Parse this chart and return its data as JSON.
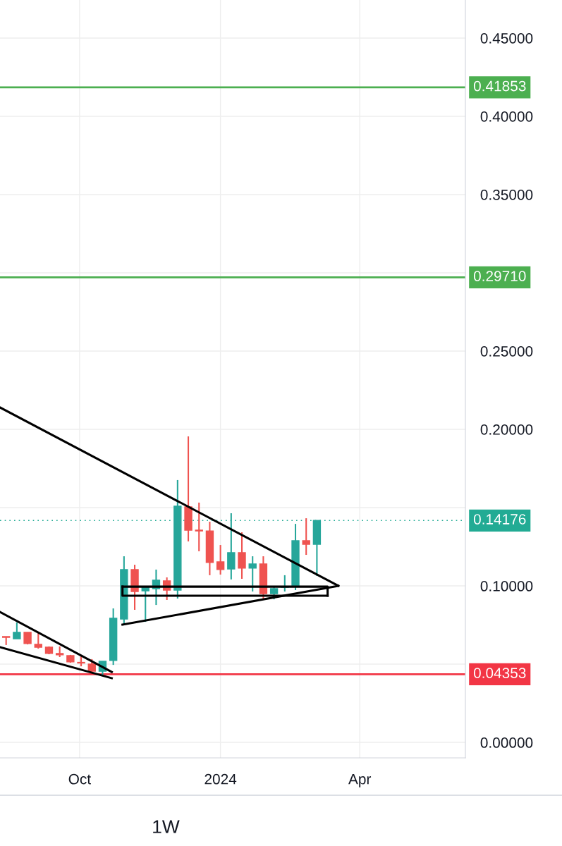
{
  "chart_data": {
    "type": "candlestick",
    "x": [
      "2023-08-14",
      "2023-08-21",
      "2023-08-28",
      "2023-09-04",
      "2023-09-11",
      "2023-09-18",
      "2023-09-25",
      "2023-10-02",
      "2023-10-09",
      "2023-10-16",
      "2023-10-23",
      "2023-10-30",
      "2023-11-06",
      "2023-11-13",
      "2023-11-20",
      "2023-11-27",
      "2023-12-04",
      "2023-12-11",
      "2023-12-18",
      "2023-12-25",
      "2024-01-01",
      "2024-01-08",
      "2024-01-15",
      "2024-01-22",
      "2024-01-29",
      "2024-02-05",
      "2024-02-12",
      "2024-02-19",
      "2024-02-26",
      "2024-03-04"
    ],
    "ohlc": [
      [
        0.0676,
        0.0676,
        0.0622,
        0.0671
      ],
      [
        0.0662,
        0.0766,
        0.0662,
        0.0703
      ],
      [
        0.0703,
        0.0703,
        0.0626,
        0.0631
      ],
      [
        0.0626,
        0.0698,
        0.0599,
        0.0608
      ],
      [
        0.0608,
        0.0613,
        0.0563,
        0.0568
      ],
      [
        0.0568,
        0.0613,
        0.0545,
        0.0559
      ],
      [
        0.0554,
        0.0559,
        0.0509,
        0.0514
      ],
      [
        0.0511,
        0.055,
        0.0486,
        0.0507
      ],
      [
        0.05,
        0.0532,
        0.045,
        0.0455
      ],
      [
        0.0455,
        0.0518,
        0.0432,
        0.0518
      ],
      [
        0.0523,
        0.0856,
        0.0495,
        0.0793
      ],
      [
        0.0788,
        0.1189,
        0.0748,
        0.1104
      ],
      [
        0.1104,
        0.1135,
        0.0847,
        0.0964
      ],
      [
        0.0968,
        0.0995,
        0.077,
        0.0991
      ],
      [
        0.0982,
        0.1104,
        0.0878,
        0.1036
      ],
      [
        0.1032,
        0.1054,
        0.091,
        0.0973
      ],
      [
        0.0973,
        0.1676,
        0.0919,
        0.1509
      ],
      [
        0.1505,
        0.1955,
        0.1284,
        0.1356
      ],
      [
        0.1356,
        0.1532,
        0.1221,
        0.1351
      ],
      [
        0.1351,
        0.141,
        0.1068,
        0.1149
      ],
      [
        0.1153,
        0.1261,
        0.1072,
        0.1104
      ],
      [
        0.1108,
        0.1464,
        0.1041,
        0.1212
      ],
      [
        0.1212,
        0.1342,
        0.1045,
        0.1113
      ],
      [
        0.1113,
        0.1189,
        0.0964,
        0.114
      ],
      [
        0.114,
        0.1189,
        0.091,
        0.095
      ],
      [
        0.095,
        0.0991,
        0.0914,
        0.0982
      ],
      [
        0.0991,
        0.1068,
        0.0964,
        0.0995
      ],
      [
        0.0995,
        0.1396,
        0.0973,
        0.1288
      ],
      [
        0.1288,
        0.1432,
        0.1198,
        0.1266
      ],
      [
        0.1266,
        0.1419,
        0.1063,
        0.1418
      ]
    ],
    "colors": [
      "#ef5350",
      "#26a69a",
      "#ef5350",
      "#ef5350",
      "#ef5350",
      "#ef5350",
      "#ef5350",
      "#ef5350",
      "#ef5350",
      "#26a69a",
      "#26a69a",
      "#26a69a",
      "#ef5350",
      "#26a69a",
      "#26a69a",
      "#ef5350",
      "#26a69a",
      "#ef5350",
      "#ef5350",
      "#ef5350",
      "#ef5350",
      "#26a69a",
      "#ef5350",
      "#26a69a",
      "#ef5350",
      "#26a69a",
      "#26a69a",
      "#26a69a",
      "#ef5350",
      "#26a69a"
    ],
    "series": [
      {
        "type": "line",
        "color": "#000000",
        "x": [
          "2023-08-10",
          "2024-03-18"
        ],
        "values": [
          0.214,
          0.1
        ]
      },
      {
        "type": "line",
        "color": "#000000",
        "x": [
          "2023-10-29",
          "2024-03-18"
        ],
        "values": [
          0.0752,
          0.1
        ]
      },
      {
        "type": "line",
        "color": "#000000",
        "x": [
          "2023-08-10",
          "2023-10-22"
        ],
        "values": [
          0.0833,
          0.045
        ]
      },
      {
        "type": "line",
        "color": "#000000",
        "x": [
          "2023-08-10",
          "2023-10-22"
        ],
        "values": [
          0.0608,
          0.041
        ]
      },
      {
        "type": "line",
        "color": "#000000",
        "x": [
          "2023-10-29",
          "2024-03-11",
          "2024-03-11"
        ],
        "values": [
          0.0995,
          0.0995,
          0.0937
        ]
      },
      {
        "type": "line",
        "color": "#000000",
        "x": [
          "2023-10-29",
          "2023-10-29",
          "2024-03-11"
        ],
        "values": [
          0.0995,
          0.0937,
          0.0937
        ]
      }
    ],
    "ref_lines": [
      {
        "axis": "y",
        "value": 0.41853,
        "label": "0.41853",
        "color": "#4caf50",
        "line_style": "solid"
      },
      {
        "axis": "y",
        "value": 0.2971,
        "label": "0.29710",
        "color": "#4caf50",
        "line_style": "solid"
      },
      {
        "axis": "y",
        "value": 0.14176,
        "label": "0.14176",
        "color": "#22ab94",
        "line_style": "dotted"
      },
      {
        "axis": "y",
        "value": 0.04353,
        "label": "0.04353",
        "color": "#f23645",
        "line_style": "solid"
      }
    ],
    "xlim": [
      "2023-08-10",
      "2024-06-09"
    ],
    "xticks": [
      {
        "value": "2023-10-01",
        "label": "Oct"
      },
      {
        "value": "2024-01-01",
        "label": "2024"
      },
      {
        "value": "2024-04-01",
        "label": "Apr"
      }
    ],
    "ylim": [
      -0.0099,
      0.4743
    ],
    "yticks": [
      {
        "value": 0,
        "label": "0.00000"
      },
      {
        "value": 0.05,
        "label": null
      },
      {
        "value": 0.1,
        "label": "0.10000"
      },
      {
        "value": 0.15,
        "label": null
      },
      {
        "value": 0.2,
        "label": "0.20000"
      },
      {
        "value": 0.25,
        "label": "0.25000"
      },
      {
        "value": 0.3,
        "label": null
      },
      {
        "value": 0.35,
        "label": "0.35000"
      },
      {
        "value": 0.4,
        "label": "0.40000"
      },
      {
        "value": 0.45,
        "label": "0.45000"
      }
    ],
    "grid": true,
    "annotations": [
      "1W"
    ]
  }
}
